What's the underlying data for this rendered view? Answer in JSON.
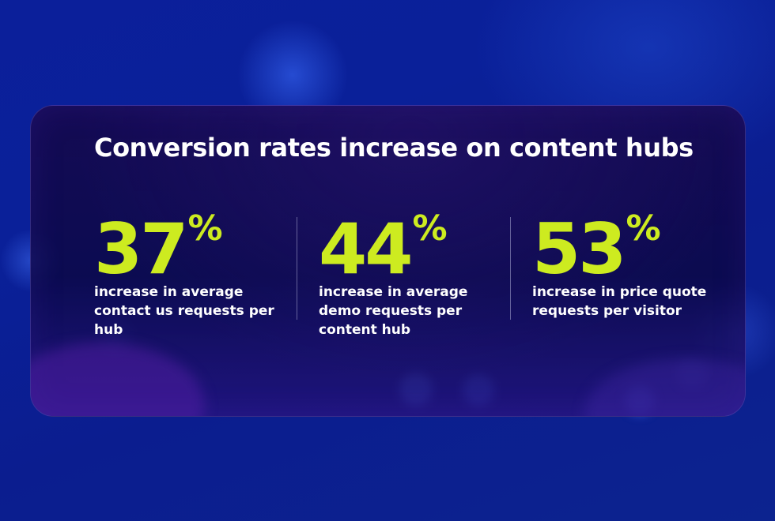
{
  "heading": {
    "title": "Conversion rates increase on content hubs"
  },
  "stats": [
    {
      "value": "37",
      "unit": "%",
      "description": "increase in average contact us requests per hub"
    },
    {
      "value": "44",
      "unit": "%",
      "description": "increase in average demo requests per content hub"
    },
    {
      "value": "53",
      "unit": "%",
      "description": "increase in price quote requests per visitor"
    }
  ],
  "colors": {
    "accent": "#cdeb20",
    "text": "#ffffff",
    "background": "#0b1f9a",
    "panel": "#140a4c"
  }
}
